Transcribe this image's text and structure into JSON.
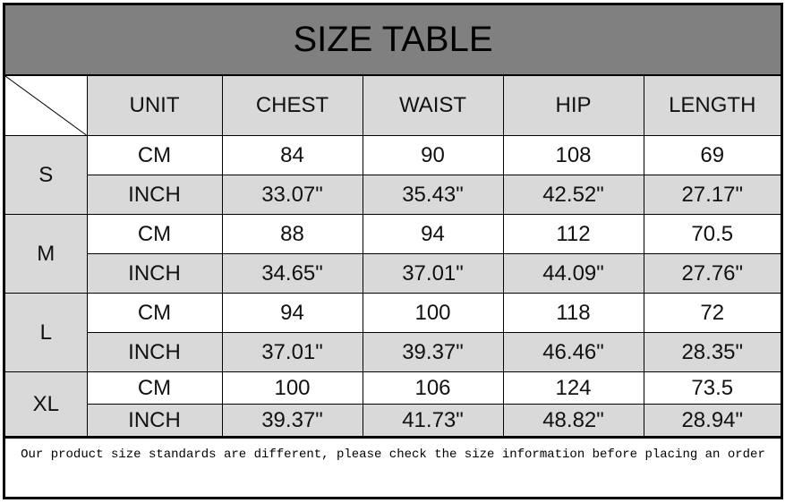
{
  "title": "SIZE TABLE",
  "headers": [
    "UNIT",
    "CHEST",
    "WAIST",
    "HIP",
    "LENGTH"
  ],
  "sizes": [
    {
      "size": "S",
      "rows": [
        {
          "unit": "CM",
          "values": [
            "84",
            "90",
            "108",
            "69"
          ]
        },
        {
          "unit": "INCH",
          "values": [
            "33.07\"",
            "35.43\"",
            "42.52\"",
            "27.17\""
          ]
        }
      ]
    },
    {
      "size": "M",
      "rows": [
        {
          "unit": "CM",
          "values": [
            "88",
            "94",
            "112",
            "70.5"
          ]
        },
        {
          "unit": "INCH",
          "values": [
            "34.65\"",
            "37.01\"",
            "44.09\"",
            "27.76\""
          ]
        }
      ]
    },
    {
      "size": "L",
      "rows": [
        {
          "unit": "CM",
          "values": [
            "94",
            "100",
            "118",
            "72"
          ]
        },
        {
          "unit": "INCH",
          "values": [
            "37.01\"",
            "39.37\"",
            "46.46\"",
            "28.35\""
          ]
        }
      ]
    },
    {
      "size": "XL",
      "rows": [
        {
          "unit": "CM",
          "values": [
            "100",
            "106",
            "124",
            "73.5"
          ]
        },
        {
          "unit": "INCH",
          "values": [
            "39.37\"",
            "41.73\"",
            "48.82\"",
            "28.94\""
          ]
        }
      ]
    }
  ],
  "note": "Our product size standards are different, please check the size information before placing an order",
  "colors": {
    "title_bg": "#808080",
    "cell_gray": "#d9d9d9",
    "border": "#000000"
  }
}
